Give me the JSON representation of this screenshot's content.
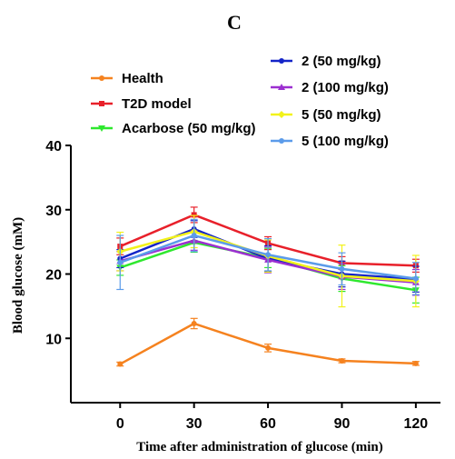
{
  "panel_label": "C",
  "chart_data": {
    "type": "line",
    "xlabel": "Time after administration of glucose (min)",
    "ylabel": "Blood glucose (mM)",
    "x": [
      0,
      30,
      60,
      90,
      120
    ],
    "xlim": [
      -20,
      130
    ],
    "ylim": [
      0,
      40
    ],
    "xticks": [
      "0",
      "30",
      "60",
      "90",
      "120"
    ],
    "yticks": [
      "10",
      "20",
      "30",
      "40"
    ],
    "grid": false,
    "legend_placement": "top",
    "series": [
      {
        "name": "Health",
        "color": "#f5821f",
        "marker": "circle",
        "values": [
          6.0,
          12.3,
          8.5,
          6.5,
          6.1
        ],
        "errors": [
          0.3,
          0.8,
          0.6,
          0.3,
          0.3
        ]
      },
      {
        "name": "T2D model",
        "color": "#e8202a",
        "marker": "square",
        "values": [
          24.3,
          29.2,
          24.8,
          21.7,
          21.3
        ],
        "errors": [
          1.3,
          1.2,
          1.0,
          1.0,
          1.0
        ]
      },
      {
        "name": "Acarbose (50 mg/kg)",
        "color": "#2ee82e",
        "marker": "triangle-down",
        "values": [
          21.0,
          24.9,
          22.5,
          19.3,
          17.5
        ],
        "errors": [
          1.2,
          1.5,
          1.5,
          2.0,
          2.0
        ]
      },
      {
        "name": "2 (50 mg/kg)",
        "color": "#1424c8",
        "marker": "circle",
        "values": [
          22.4,
          27.0,
          22.4,
          20.0,
          19.2
        ],
        "errors": [
          1.4,
          1.3,
          2.0,
          2.0,
          2.0
        ]
      },
      {
        "name": "2 (100 mg/kg)",
        "color": "#9b2fd0",
        "marker": "triangle-up",
        "values": [
          22.0,
          25.2,
          22.2,
          19.6,
          18.7
        ],
        "errors": [
          1.5,
          1.5,
          2.0,
          2.0,
          2.0
        ]
      },
      {
        "name": "5 (50 mg/kg)",
        "color": "#f2f21a",
        "marker": "diamond",
        "values": [
          23.5,
          26.6,
          22.8,
          19.7,
          18.9
        ],
        "errors": [
          3.0,
          2.5,
          2.5,
          4.8,
          4.0
        ]
      },
      {
        "name": "5 (100 mg/kg)",
        "color": "#5b9bea",
        "marker": "circle",
        "values": [
          21.8,
          26.0,
          23.0,
          20.8,
          19.3
        ],
        "errors": [
          4.2,
          2.5,
          2.5,
          2.5,
          2.5
        ]
      }
    ]
  }
}
